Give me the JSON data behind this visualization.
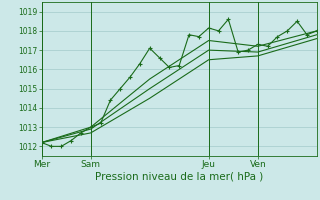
{
  "background_color": "#cce8e8",
  "grid_color": "#aacfcf",
  "line_color": "#1a6b1a",
  "xlabel": "Pression niveau de la mer( hPa )",
  "xlabel_fontsize": 7.5,
  "ylim": [
    1011.5,
    1019.5
  ],
  "yticks": [
    1012,
    1013,
    1014,
    1015,
    1016,
    1017,
    1018,
    1019
  ],
  "day_labels": [
    "Mer",
    "Sam",
    "Jeu",
    "Ven"
  ],
  "day_positions": [
    0,
    5,
    17,
    22
  ],
  "xlim": [
    0,
    28
  ],
  "series1_x": [
    0,
    1,
    2,
    3,
    4,
    5,
    6,
    7,
    8,
    9,
    10,
    11,
    12,
    13,
    14,
    15,
    16,
    17,
    18,
    19,
    20,
    21,
    22,
    23,
    24,
    25,
    26,
    27,
    28
  ],
  "series1_y": [
    1012.2,
    1012.0,
    1012.0,
    1012.3,
    1012.7,
    1013.0,
    1013.2,
    1014.4,
    1015.0,
    1015.6,
    1016.3,
    1017.1,
    1016.6,
    1016.1,
    1016.2,
    1017.8,
    1017.7,
    1018.15,
    1018.0,
    1018.6,
    1016.9,
    1017.0,
    1017.3,
    1017.2,
    1017.7,
    1018.0,
    1018.5,
    1017.8,
    1018.0
  ],
  "series2_x": [
    0,
    5,
    11,
    17,
    22,
    28
  ],
  "series2_y": [
    1012.2,
    1013.0,
    1015.5,
    1017.5,
    1017.2,
    1018.0
  ],
  "series3_x": [
    0,
    5,
    11,
    17,
    22,
    28
  ],
  "series3_y": [
    1012.2,
    1012.9,
    1015.0,
    1017.0,
    1016.9,
    1017.8
  ],
  "series4_x": [
    0,
    5,
    11,
    17,
    22,
    28
  ],
  "series4_y": [
    1012.2,
    1012.7,
    1014.5,
    1016.5,
    1016.7,
    1017.6
  ],
  "vline_positions": [
    0,
    5,
    17,
    22
  ]
}
